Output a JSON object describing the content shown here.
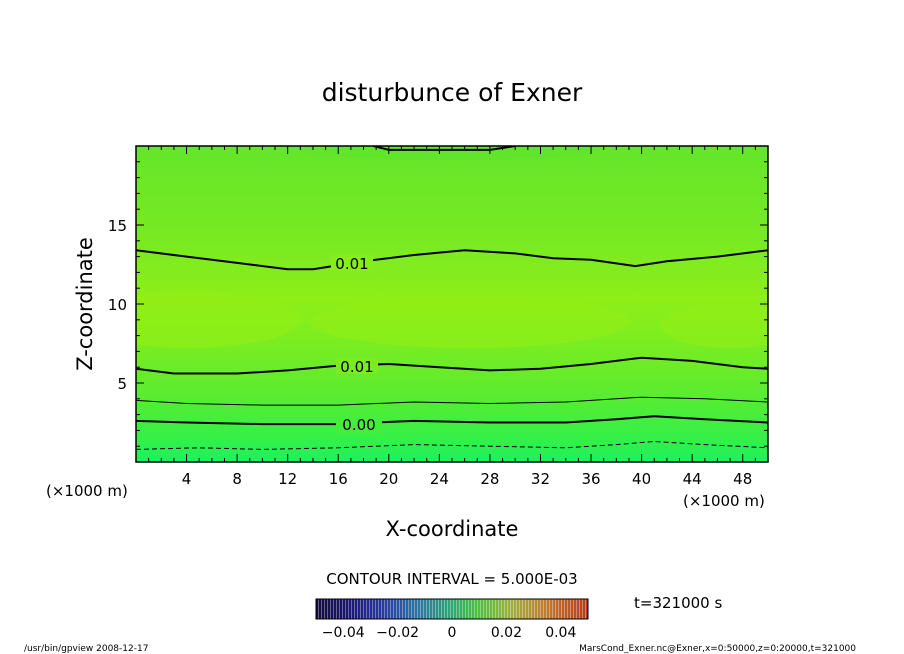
{
  "chart_data": {
    "type": "contour",
    "title": "disturbunce of Exner",
    "xlabel": "X-coordinate",
    "ylabel": "Z-coordinate",
    "x_unit_left": "(×1000 m)",
    "x_unit_right": "(×1000 m)",
    "xlim": [
      0,
      50
    ],
    "ylim": [
      0,
      20
    ],
    "x_ticks": [
      4,
      8,
      12,
      16,
      20,
      24,
      28,
      32,
      36,
      40,
      44,
      48
    ],
    "y_ticks": [
      5,
      10,
      15
    ],
    "contour_labels": [
      {
        "text": "0.01",
        "x": 16.5,
        "z": 12.5
      },
      {
        "text": "0.01",
        "x": 17.5,
        "z": 6.1
      },
      {
        "text": "0.00",
        "x": 17.5,
        "z": 2.5
      }
    ],
    "contour_lines": [
      {
        "style": "solid",
        "weight": "heavy",
        "points": [
          [
            0,
            13.4
          ],
          [
            4,
            13.0
          ],
          [
            8,
            12.6
          ],
          [
            12,
            12.2
          ],
          [
            14,
            12.2
          ],
          [
            18,
            12.7
          ],
          [
            22,
            13.1
          ],
          [
            26,
            13.4
          ],
          [
            30,
            13.2
          ],
          [
            33,
            12.9
          ],
          [
            36,
            12.8
          ],
          [
            39.5,
            12.4
          ],
          [
            42,
            12.7
          ],
          [
            46,
            13.0
          ],
          [
            50,
            13.4
          ]
        ]
      },
      {
        "style": "solid",
        "weight": "heavy",
        "points": [
          [
            0,
            5.9
          ],
          [
            3,
            5.6
          ],
          [
            8,
            5.6
          ],
          [
            12,
            5.8
          ],
          [
            16,
            6.1
          ],
          [
            20,
            6.2
          ],
          [
            24,
            6.0
          ],
          [
            28,
            5.8
          ],
          [
            32,
            5.9
          ],
          [
            36,
            6.2
          ],
          [
            40,
            6.6
          ],
          [
            44,
            6.4
          ],
          [
            48,
            6.0
          ],
          [
            50,
            5.9
          ]
        ]
      },
      {
        "style": "solid",
        "weight": "light",
        "points": [
          [
            0,
            3.9
          ],
          [
            4,
            3.7
          ],
          [
            10,
            3.6
          ],
          [
            16,
            3.6
          ],
          [
            22,
            3.8
          ],
          [
            28,
            3.7
          ],
          [
            34,
            3.8
          ],
          [
            40,
            4.1
          ],
          [
            45,
            4.0
          ],
          [
            50,
            3.8
          ]
        ]
      },
      {
        "style": "solid",
        "weight": "heavy",
        "points": [
          [
            0,
            2.6
          ],
          [
            4,
            2.5
          ],
          [
            10,
            2.4
          ],
          [
            16,
            2.4
          ],
          [
            22,
            2.6
          ],
          [
            28,
            2.5
          ],
          [
            34,
            2.5
          ],
          [
            38,
            2.7
          ],
          [
            41,
            2.9
          ],
          [
            45,
            2.7
          ],
          [
            50,
            2.5
          ]
        ]
      },
      {
        "style": "dashed",
        "weight": "light",
        "points": [
          [
            0,
            0.8
          ],
          [
            5,
            0.9
          ],
          [
            10,
            0.8
          ],
          [
            16,
            0.9
          ],
          [
            22,
            1.1
          ],
          [
            28,
            1.0
          ],
          [
            34,
            0.9
          ],
          [
            38,
            1.1
          ],
          [
            41,
            1.3
          ],
          [
            45,
            1.1
          ],
          [
            50,
            0.9
          ]
        ]
      },
      {
        "style": "solid",
        "weight": "heavy",
        "points": [
          [
            18.8,
            20
          ],
          [
            20,
            19.75
          ],
          [
            24,
            19.75
          ],
          [
            28,
            19.75
          ],
          [
            30,
            20
          ]
        ]
      }
    ],
    "contour_interval_text": "CONTOUR INTERVAL = 5.000E-03",
    "colorbar": {
      "range": [
        -0.05,
        0.05
      ],
      "tick_labels": [
        "−0.04",
        "−0.02",
        "0",
        "0.02",
        "0.04"
      ],
      "tick_values": [
        -0.04,
        -0.02,
        0,
        0.02,
        0.04
      ]
    },
    "colors": {
      "band_low": "#22f060",
      "band_mid": "#80f020",
      "band_high": "#90ec14",
      "band_top": "#6ce828",
      "colorbar_low": "#10104a",
      "colorbar_high": "#c84424"
    }
  },
  "time_text": "t=321000 s",
  "footer_left": "/usr/bin/gpview   2008-12-17",
  "footer_right": "MarsCond_Exner.nc@Exner,x=0:50000,z=0:20000,t=321000"
}
